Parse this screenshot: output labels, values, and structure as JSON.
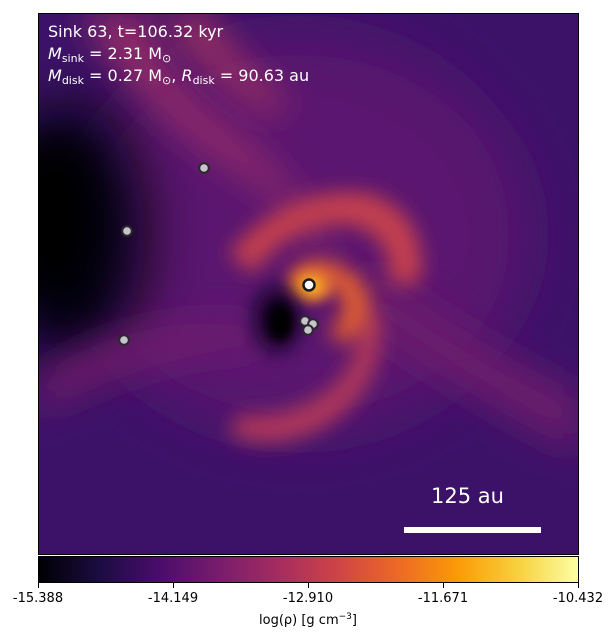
{
  "annotation": {
    "line1": "Sink 63, t=106.32 kyr",
    "mass_sink_symbol": "M",
    "mass_sink_sub": "sink",
    "mass_sink_value": " = 2.31 M",
    "mass_sun_sub": "⊙",
    "mass_disk_symbol": "M",
    "mass_disk_sub": "disk",
    "mass_disk_value": " = 0.27 M",
    "radius_symbol": "R",
    "radius_sub": "disk",
    "radius_value": " = 90.63 au",
    "separator": ", "
  },
  "scale_bar": {
    "label": "125 au"
  },
  "colorbar": {
    "colormap": "inferno",
    "ticks": [
      "-15.388",
      "-14.149",
      "-12.910",
      "-11.671",
      "-10.432"
    ],
    "label_main": "log(ρ) [g cm",
    "label_exp": "−3",
    "label_end": "]",
    "colors": [
      "#000004",
      "#1b0c41",
      "#4a0c6b",
      "#781c6d",
      "#a52c60",
      "#cf4446",
      "#ed6925",
      "#fb9b06",
      "#f7d13d",
      "#fcffa4"
    ]
  },
  "sinks": [
    {
      "kind": "companion"
    },
    {
      "kind": "companion"
    },
    {
      "kind": "companion"
    },
    {
      "kind": "central"
    },
    {
      "kind": "companion"
    },
    {
      "kind": "companion"
    },
    {
      "kind": "companion"
    }
  ]
}
